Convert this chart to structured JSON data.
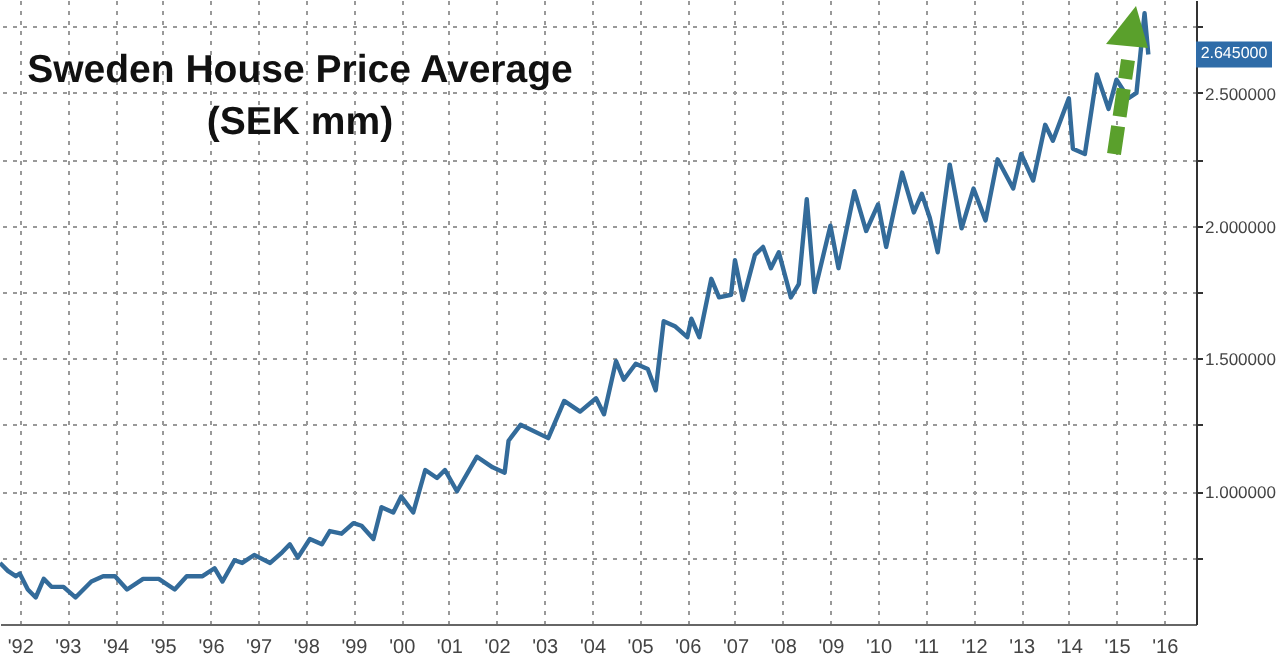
{
  "chart_data": {
    "type": "line",
    "title": "Sweden House Price Average",
    "subtitle": "(SEK mm)",
    "x": [
      "1992-02",
      "1992-04",
      "1992-06",
      "1992-07",
      "1992-09",
      "1992-11",
      "1993-01",
      "1993-03",
      "1993-06",
      "1993-09",
      "1994-01",
      "1994-04",
      "1994-07",
      "1994-10",
      "1995-02",
      "1995-06",
      "1995-10",
      "1996-01",
      "1996-05",
      "1996-08",
      "1996-10",
      "1997-01",
      "1997-03",
      "1997-06",
      "1997-10",
      "1998-01",
      "1998-03",
      "1998-05",
      "1998-08",
      "1998-11",
      "1999-01",
      "1999-04",
      "1999-07",
      "1999-09",
      "1999-12",
      "2000-02",
      "2000-05",
      "2000-07",
      "2000-10",
      "2001-01",
      "2001-04",
      "2001-06",
      "2001-09",
      "2002-02",
      "2002-06",
      "2002-09",
      "2002-10",
      "2003-01",
      "2003-08",
      "2003-12",
      "2004-04",
      "2004-08",
      "2004-10",
      "2005-01",
      "2005-03",
      "2005-06",
      "2005-09",
      "2005-11",
      "2006-01",
      "2006-04",
      "2006-07",
      "2006-08",
      "2006-10",
      "2007-01",
      "2007-03",
      "2007-06",
      "2007-07",
      "2007-09",
      "2007-12",
      "2008-02",
      "2008-04",
      "2008-06",
      "2008-09",
      "2008-11",
      "2009-01",
      "2009-03",
      "2009-07",
      "2009-09",
      "2010-01",
      "2010-04",
      "2010-07",
      "2010-09",
      "2011-01",
      "2011-04",
      "2011-06",
      "2011-08",
      "2011-10",
      "2012-01",
      "2012-04",
      "2012-07",
      "2012-10",
      "2013-01",
      "2013-05",
      "2013-07",
      "2013-10",
      "2014-01",
      "2014-03",
      "2014-07",
      "2014-08",
      "2014-11",
      "2015-02",
      "2015-05",
      "2015-07",
      "2015-10",
      "2015-12",
      "2016-02",
      "2016-03"
    ],
    "series": [
      {
        "color": "#336b9a",
        "values": [
          0.73,
          0.7,
          0.68,
          0.69,
          0.63,
          0.6,
          0.67,
          0.64,
          0.64,
          0.6,
          0.66,
          0.68,
          0.68,
          0.63,
          0.67,
          0.67,
          0.63,
          0.68,
          0.68,
          0.71,
          0.66,
          0.74,
          0.73,
          0.76,
          0.73,
          0.77,
          0.8,
          0.75,
          0.82,
          0.8,
          0.85,
          0.84,
          0.88,
          0.87,
          0.82,
          0.94,
          0.92,
          0.98,
          0.92,
          1.08,
          1.05,
          1.08,
          1.0,
          1.13,
          1.09,
          1.07,
          1.19,
          1.25,
          1.2,
          1.34,
          1.3,
          1.35,
          1.29,
          1.49,
          1.42,
          1.48,
          1.46,
          1.38,
          1.64,
          1.62,
          1.58,
          1.65,
          1.58,
          1.8,
          1.73,
          1.74,
          1.87,
          1.72,
          1.89,
          1.92,
          1.84,
          1.9,
          1.73,
          1.78,
          2.1,
          1.75,
          2.0,
          1.84,
          2.13,
          1.98,
          2.08,
          1.92,
          2.2,
          2.05,
          2.12,
          2.03,
          1.9,
          2.23,
          1.99,
          2.14,
          2.02,
          2.25,
          2.14,
          2.27,
          2.17,
          2.38,
          2.32,
          2.48,
          2.29,
          2.27,
          2.57,
          2.44,
          2.55,
          2.48,
          2.5,
          2.8,
          2.645
        ]
      }
    ],
    "xlim": [
      "1992-02",
      "2017-03"
    ],
    "xticks": [
      {
        "value": "1992-07",
        "label": "'92"
      },
      {
        "value": "1993-07",
        "label": "'93"
      },
      {
        "value": "1994-07",
        "label": "'94"
      },
      {
        "value": "1995-07",
        "label": "'95"
      },
      {
        "value": "1996-07",
        "label": "'96"
      },
      {
        "value": "1997-07",
        "label": "'97"
      },
      {
        "value": "1998-07",
        "label": "'98"
      },
      {
        "value": "1999-07",
        "label": "'99"
      },
      {
        "value": "2000-07",
        "label": "'00"
      },
      {
        "value": "2001-07",
        "label": "'01"
      },
      {
        "value": "2002-07",
        "label": "'02"
      },
      {
        "value": "2003-07",
        "label": "'03"
      },
      {
        "value": "2004-07",
        "label": "'04"
      },
      {
        "value": "2005-07",
        "label": "'05"
      },
      {
        "value": "2006-07",
        "label": "'06"
      },
      {
        "value": "2007-07",
        "label": "'07"
      },
      {
        "value": "2008-07",
        "label": "'08"
      },
      {
        "value": "2009-07",
        "label": "'09"
      },
      {
        "value": "2010-07",
        "label": "'10"
      },
      {
        "value": "2011-07",
        "label": "'11"
      },
      {
        "value": "2012-07",
        "label": "'12"
      },
      {
        "value": "2013-07",
        "label": "'13"
      },
      {
        "value": "2014-07",
        "label": "'14"
      },
      {
        "value": "2015-07",
        "label": "'15"
      },
      {
        "value": "2016-07",
        "label": "'16"
      }
    ],
    "ylim": [
      0.5,
      2.85
    ],
    "yticks": [
      {
        "value": 0.75,
        "label": null
      },
      {
        "value": 1,
        "label": "1.000000"
      },
      {
        "value": 1.25,
        "label": null
      },
      {
        "value": 1.5,
        "label": "1.500000"
      },
      {
        "value": 1.75,
        "label": null
      },
      {
        "value": 2,
        "label": "2.000000"
      },
      {
        "value": 2.25,
        "label": null
      },
      {
        "value": 2.5,
        "label": "2.500000"
      },
      {
        "value": 2.75,
        "label": null
      }
    ],
    "grid": true,
    "annotations": [
      "2.645000"
    ]
  }
}
